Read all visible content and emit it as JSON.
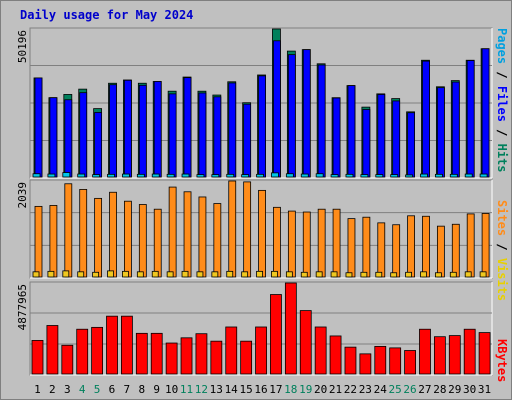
{
  "title": "Daily usage for May 2024",
  "colors": {
    "hits": "#00805c",
    "files": "#0000ff",
    "pages": "#00c8e8",
    "visits": "#f0c820",
    "sites": "#ff8c1a",
    "kbytes": "#ff0000",
    "weekend_day": "#00805c",
    "weekday": "#000000"
  },
  "side_labels": {
    "panel1": [
      {
        "text": "Pages",
        "color": "#00a0e0"
      },
      {
        "text": " / ",
        "color": "#000000"
      },
      {
        "text": "Files",
        "color": "#0000ff"
      },
      {
        "text": " / ",
        "color": "#000000"
      },
      {
        "text": "Hits",
        "color": "#00805c"
      }
    ],
    "panel2": [
      {
        "text": "Sites",
        "color": "#ff8c1a"
      },
      {
        "text": " / ",
        "color": "#000000"
      },
      {
        "text": "Visits",
        "color": "#e8d000"
      }
    ],
    "panel3": [
      {
        "text": "KBytes",
        "color": "#ff0000"
      }
    ]
  },
  "chart_data": [
    {
      "type": "bar",
      "panel": "hits-files-pages",
      "ytick_label": "50196",
      "ylim": [
        0,
        50196
      ],
      "categories": [
        "1",
        "2",
        "3",
        "4",
        "5",
        "6",
        "7",
        "8",
        "9",
        "10",
        "11",
        "12",
        "13",
        "14",
        "15",
        "16",
        "17",
        "18",
        "19",
        "20",
        "21",
        "22",
        "23",
        "24",
        "25",
        "26",
        "27",
        "28",
        "29",
        "30",
        "31"
      ],
      "weekend_days": [
        "4",
        "5",
        "11",
        "12",
        "18",
        "19",
        "25",
        "26"
      ],
      "series": [
        {
          "name": "Hits",
          "values": [
            33600,
            26900,
            28000,
            29800,
            23200,
            31800,
            32900,
            31800,
            32400,
            29100,
            33900,
            29100,
            27800,
            32300,
            25200,
            34600,
            50196,
            42700,
            43200,
            38400,
            26900,
            31000,
            23700,
            28200,
            26600,
            22100,
            39600,
            30600,
            32700,
            39600,
            43500
          ]
        },
        {
          "name": "Files",
          "values": [
            33600,
            26900,
            26200,
            28600,
            21900,
            31300,
            32800,
            31100,
            32400,
            28200,
            33700,
            28500,
            27200,
            31900,
            24700,
            34300,
            46200,
            41500,
            43200,
            38000,
            26800,
            31000,
            22900,
            28000,
            25800,
            21800,
            39300,
            30300,
            32200,
            39500,
            43500
          ]
        },
        {
          "name": "Pages",
          "values": [
            1100,
            1000,
            1500,
            1000,
            800,
            900,
            1000,
            900,
            1000,
            900,
            1000,
            800,
            800,
            900,
            800,
            900,
            1400,
            1100,
            1000,
            1100,
            800,
            900,
            800,
            800,
            800,
            700,
            1000,
            900,
            900,
            1000,
            1000
          ]
        }
      ]
    },
    {
      "type": "bar",
      "panel": "visits-sites",
      "ytick_label": "2039",
      "ylim": [
        0,
        2039
      ],
      "categories": [
        "1",
        "2",
        "3",
        "4",
        "5",
        "6",
        "7",
        "8",
        "9",
        "10",
        "11",
        "12",
        "13",
        "14",
        "15",
        "16",
        "17",
        "18",
        "19",
        "20",
        "21",
        "22",
        "23",
        "24",
        "25",
        "26",
        "27",
        "28",
        "29",
        "30",
        "31"
      ],
      "series": [
        {
          "name": "Visits",
          "values": [
            1500,
            1520,
            1980,
            1860,
            1670,
            1800,
            1610,
            1540,
            1440,
            1910,
            1810,
            1700,
            1560,
            2039,
            2020,
            1840,
            1480,
            1400,
            1380,
            1440,
            1440,
            1240,
            1270,
            1150,
            1110,
            1300,
            1290,
            1080,
            1120,
            1340,
            1350
          ]
        },
        {
          "name": "Sites",
          "values": [
            110,
            120,
            130,
            110,
            100,
            130,
            120,
            110,
            120,
            110,
            120,
            110,
            110,
            120,
            110,
            120,
            120,
            110,
            100,
            110,
            110,
            90,
            100,
            100,
            90,
            100,
            110,
            90,
            100,
            110,
            110
          ]
        }
      ]
    },
    {
      "type": "bar",
      "panel": "kbytes",
      "ytick_label": "4877965",
      "ylim": [
        0,
        4877965
      ],
      "categories": [
        "1",
        "2",
        "3",
        "4",
        "5",
        "6",
        "7",
        "8",
        "9",
        "10",
        "11",
        "12",
        "13",
        "14",
        "15",
        "16",
        "17",
        "18",
        "19",
        "20",
        "21",
        "22",
        "23",
        "24",
        "25",
        "26",
        "27",
        "28",
        "29",
        "30",
        "31"
      ],
      "series": [
        {
          "name": "KBytes",
          "values": [
            1800000,
            2600000,
            1540000,
            2400000,
            2500000,
            3100000,
            3100000,
            2180000,
            2180000,
            1660000,
            1940000,
            2160000,
            1760000,
            2520000,
            1760000,
            2520000,
            4260000,
            4877965,
            3400000,
            2520000,
            2040000,
            1440000,
            1080000,
            1480000,
            1400000,
            1260000,
            2400000,
            2000000,
            2060000,
            2400000,
            2220000
          ]
        }
      ]
    }
  ]
}
